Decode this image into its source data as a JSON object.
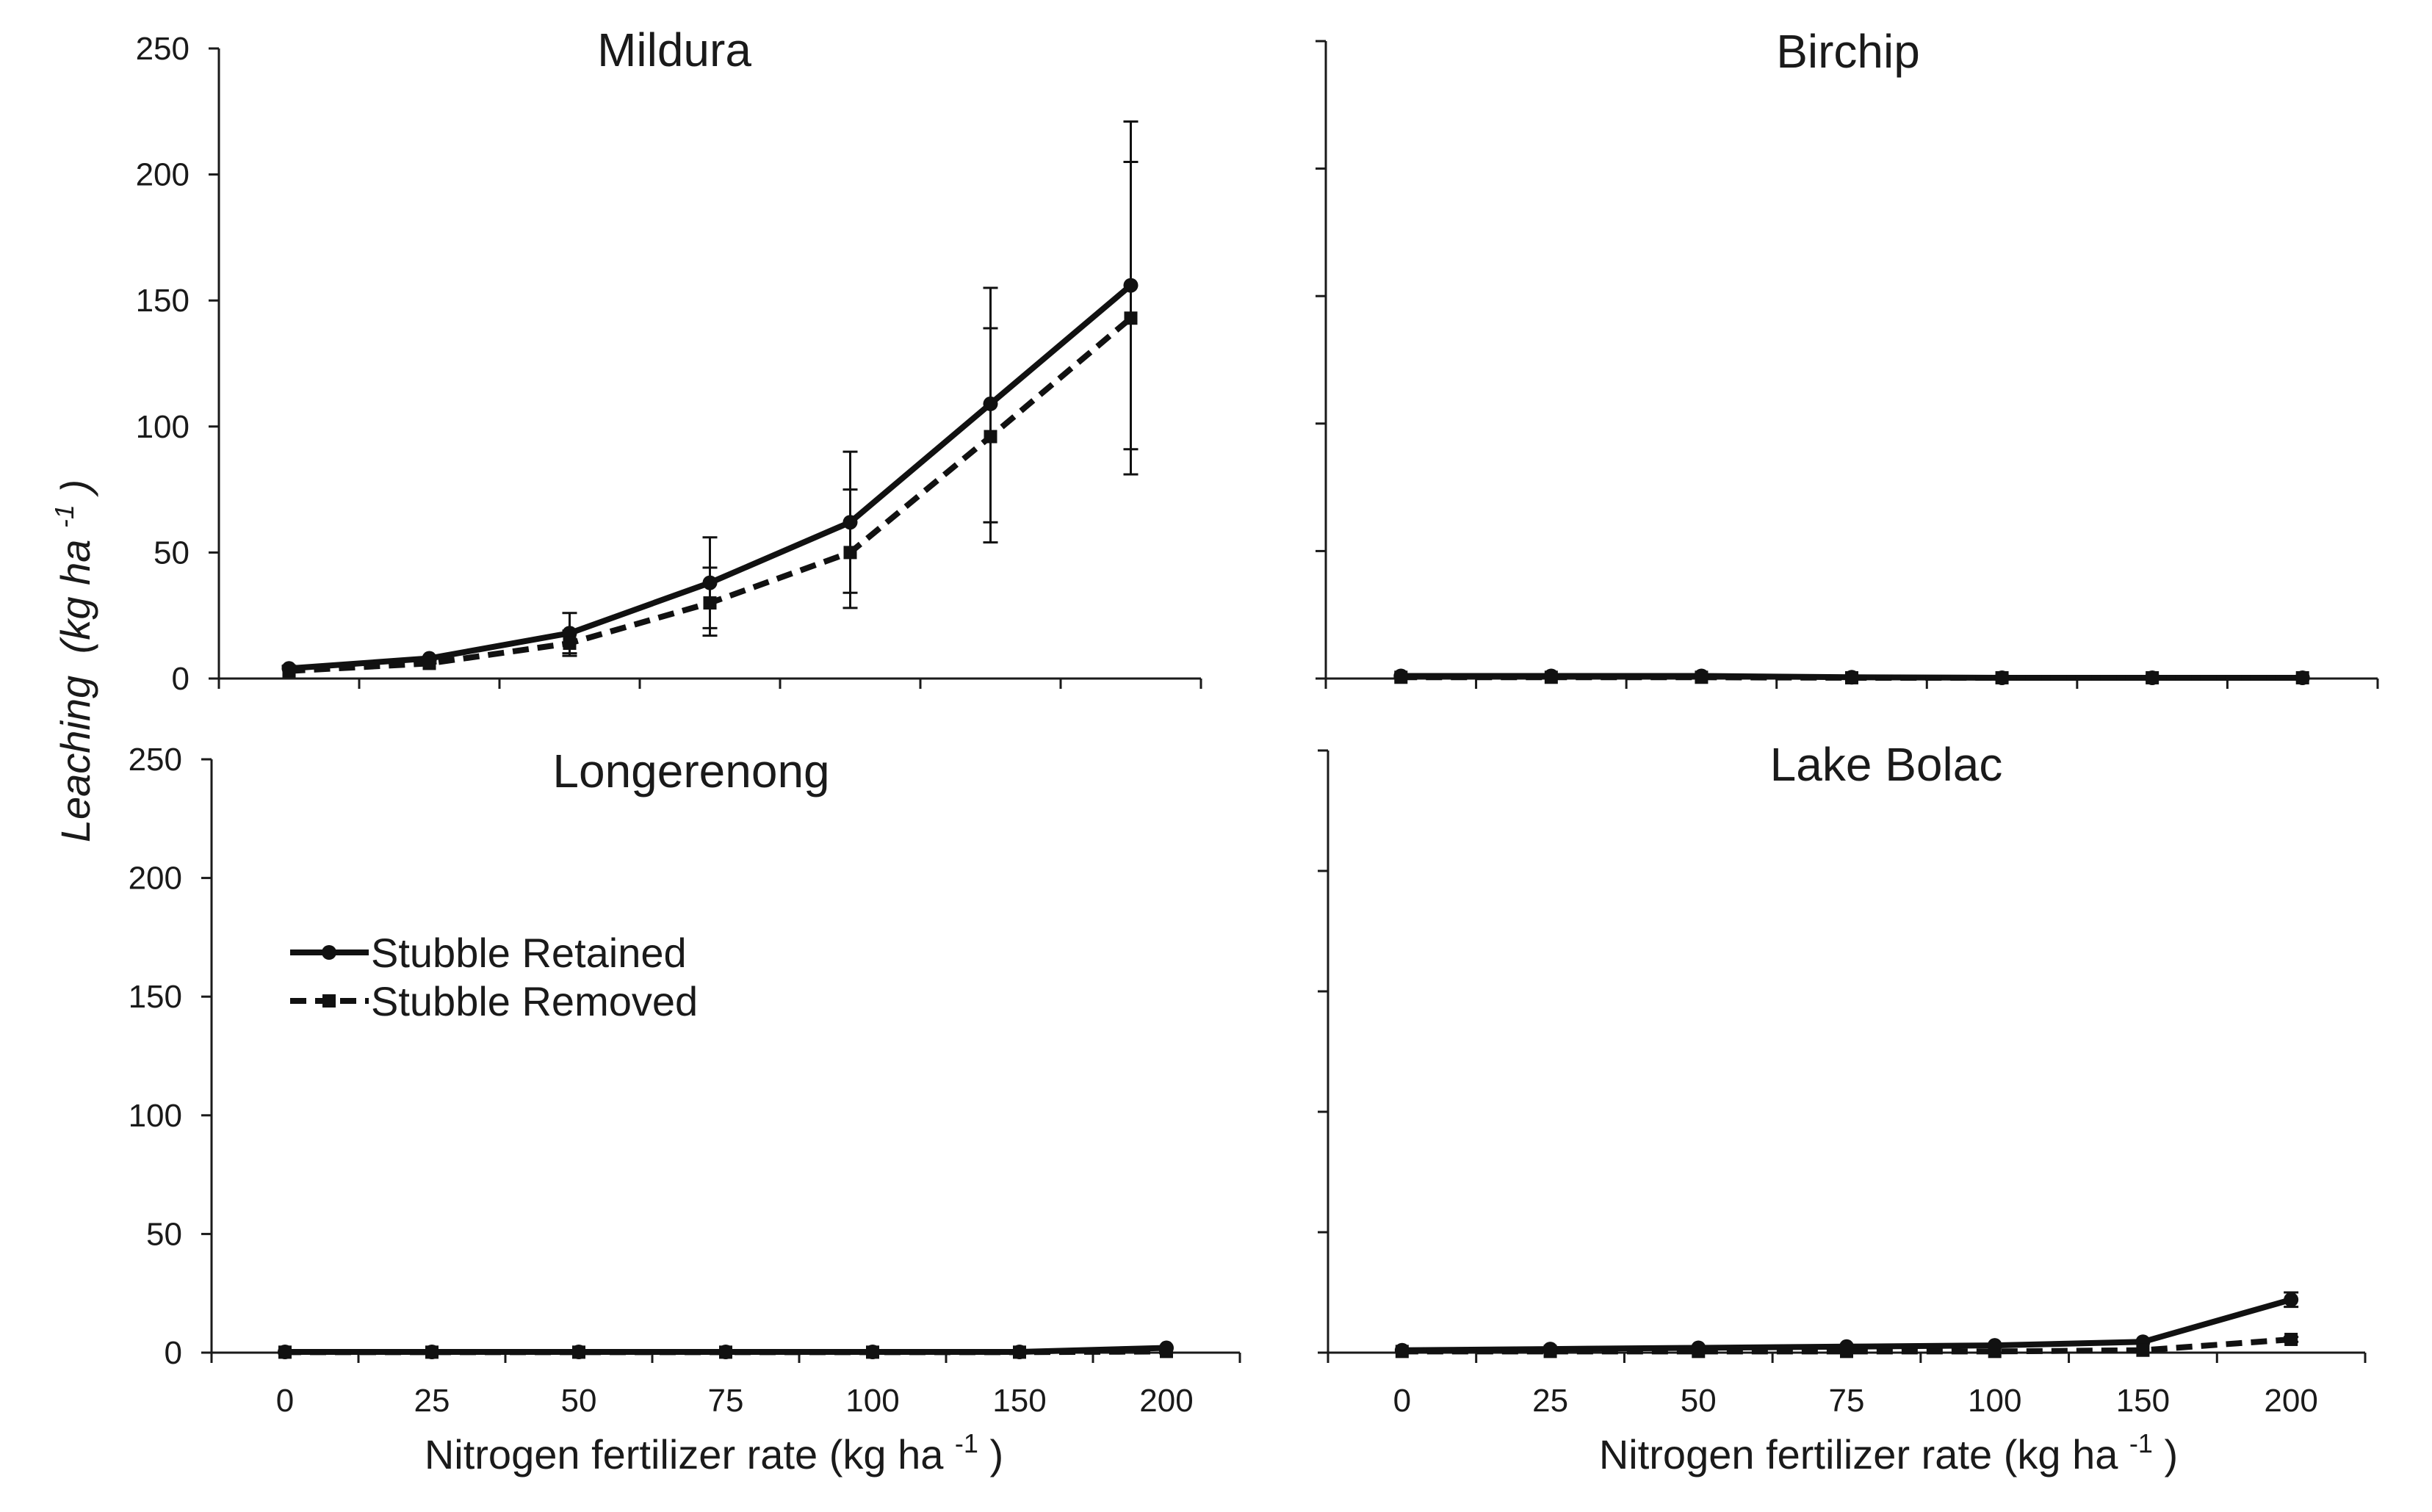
{
  "chart_data": [
    {
      "type": "line",
      "title": "Mildura",
      "categories": [
        "0",
        "25",
        "50",
        "75",
        "100",
        "150",
        "200"
      ],
      "ylim": [
        0,
        250
      ],
      "yticks": [
        0,
        50,
        100,
        150,
        200,
        250
      ],
      "show_yticks": true,
      "show_xticks": false,
      "series": [
        {
          "name": "Stubble Retained",
          "values": [
            4,
            8,
            18,
            38,
            62,
            109,
            156
          ],
          "err_low": [
            4,
            7,
            10,
            20,
            28,
            54,
            91
          ],
          "err_high": [
            5,
            8,
            26,
            56,
            90,
            155,
            221
          ]
        },
        {
          "name": "Stubble Removed",
          "values": [
            3,
            6,
            14,
            30,
            50,
            96,
            143
          ],
          "err_low": [
            3,
            6,
            9,
            17,
            34,
            62,
            81
          ],
          "err_high": [
            3,
            7,
            19,
            44,
            75,
            139,
            205
          ]
        }
      ]
    },
    {
      "type": "line",
      "title": "Birchip",
      "categories": [
        "0",
        "25",
        "50",
        "75",
        "100",
        "150",
        "200"
      ],
      "ylim": [
        0,
        250
      ],
      "yticks": [
        0,
        50,
        100,
        150,
        200,
        250
      ],
      "show_yticks": false,
      "show_xticks": false,
      "series": [
        {
          "name": "Stubble Retained",
          "values": [
            1,
            1,
            1,
            0.5,
            0.3,
            0.3,
            0.3
          ]
        },
        {
          "name": "Stubble Removed",
          "values": [
            0.5,
            0.5,
            0.5,
            0.3,
            0.3,
            0.3,
            0.3
          ]
        }
      ]
    },
    {
      "type": "line",
      "title": "Longerenong",
      "categories": [
        "0",
        "25",
        "50",
        "75",
        "100",
        "150",
        "200"
      ],
      "ylim": [
        0,
        250
      ],
      "yticks": [
        0,
        50,
        100,
        150,
        200,
        250
      ],
      "show_yticks": true,
      "show_xticks": true,
      "series": [
        {
          "name": "Stubble Retained",
          "values": [
            0.3,
            0.3,
            0.3,
            0.3,
            0.3,
            0.3,
            2
          ]
        },
        {
          "name": "Stubble Removed",
          "values": [
            0.2,
            0.2,
            0.2,
            0.2,
            0.2,
            0.2,
            0.5
          ]
        }
      ]
    },
    {
      "type": "line",
      "title": "Lake Bolac",
      "categories": [
        "0",
        "25",
        "50",
        "75",
        "100",
        "150",
        "200"
      ],
      "ylim": [
        0,
        250
      ],
      "yticks": [
        0,
        50,
        100,
        150,
        200,
        250
      ],
      "show_yticks": false,
      "show_xticks": true,
      "series": [
        {
          "name": "Stubble Retained",
          "values": [
            1,
            1.5,
            2,
            2.5,
            3,
            4.5,
            22
          ],
          "err_low": [
            1,
            1.5,
            2,
            2.5,
            3,
            4.5,
            19
          ],
          "err_high": [
            1,
            1.5,
            2,
            2.5,
            3,
            4.5,
            25
          ]
        },
        {
          "name": "Stubble Removed",
          "values": [
            0.5,
            0.5,
            0.5,
            0.5,
            0.5,
            1,
            5.5
          ],
          "err_low": [
            0.5,
            0.5,
            0.5,
            0.5,
            0.5,
            1,
            4.5
          ],
          "err_high": [
            0.5,
            0.5,
            0.5,
            0.5,
            0.5,
            1,
            6.5
          ]
        }
      ]
    }
  ],
  "ylabel": "Leaching",
  "ylabel_units": "(kg ha",
  "ylabel_sup": "-1",
  "ylabel_close": ")",
  "xlabel": "Nitrogen  fertilizer  rate  (kg ha",
  "xlabel_sup": "-1",
  "xlabel_close": ")",
  "legend": {
    "placement": "left",
    "entries": [
      "Stubble Retained",
      "Stubble Removed"
    ]
  },
  "colors": {
    "line": "#111111",
    "axis": "#1a1a1a"
  }
}
